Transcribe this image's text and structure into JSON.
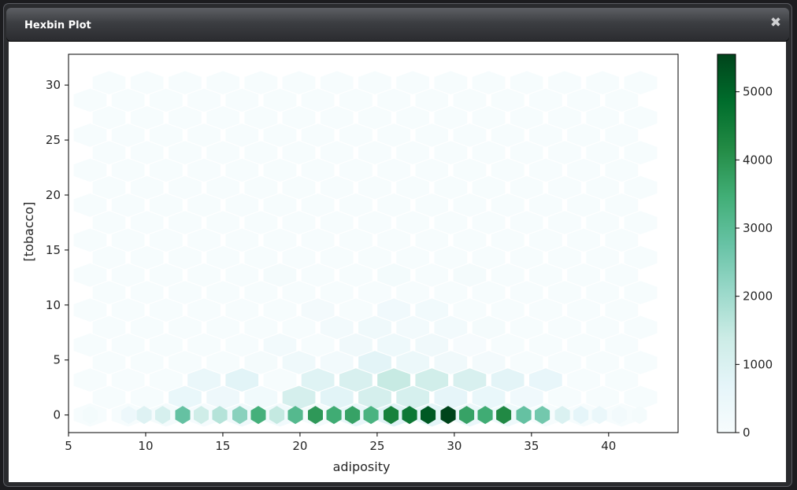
{
  "window": {
    "title": "Hexbin Plot",
    "close_icon": "close-icon",
    "close_glyph": "✖"
  },
  "chart_data": {
    "type": "heatmap",
    "subtype": "hexbin",
    "title": "",
    "xlabel": "adiposity",
    "ylabel": "[tobacco]",
    "xlim": [
      5,
      44.5
    ],
    "ylim": [
      -1.6,
      32.8
    ],
    "x_ticks": [
      5,
      10,
      15,
      20,
      25,
      30,
      35,
      40
    ],
    "y_ticks": [
      0,
      5,
      10,
      15,
      20,
      25,
      30
    ],
    "colorbar": {
      "ticks": [
        0,
        1000,
        2000,
        3000,
        4000,
        5000
      ],
      "range": [
        0,
        5550
      ],
      "colormap": [
        "#f7fcfd",
        "#e5f5f9",
        "#ccece6",
        "#99d8c9",
        "#66c2a4",
        "#41ae76",
        "#238b45",
        "#006d2c",
        "#00441b"
      ]
    },
    "gridsize": {
      "x_min": 6.4,
      "dx": 2.46,
      "y_min": 0,
      "dy": 1.59,
      "cols": 16,
      "rows": 20
    },
    "bin_counts": {
      "baseline": 40,
      "bottom_row_y0": [
        [
          6.4,
          140
        ],
        [
          8.9,
          380
        ],
        [
          9.9,
          900
        ],
        [
          11.1,
          1100
        ],
        [
          12.4,
          2800
        ],
        [
          13.6,
          1300
        ],
        [
          14.8,
          1700
        ],
        [
          16.1,
          2300
        ],
        [
          17.3,
          3400
        ],
        [
          18.5,
          1500
        ],
        [
          19.7,
          3100
        ],
        [
          21,
          3900
        ],
        [
          22.2,
          3500
        ],
        [
          23.4,
          3700
        ],
        [
          24.6,
          3300
        ],
        [
          25.9,
          4400
        ],
        [
          27.1,
          4600
        ],
        [
          28.3,
          5200
        ],
        [
          29.6,
          5550
        ],
        [
          30.8,
          3700
        ],
        [
          32,
          3500
        ],
        [
          33.2,
          4200
        ],
        [
          34.5,
          2800
        ],
        [
          35.7,
          2600
        ],
        [
          37,
          1000
        ],
        [
          38.2,
          700
        ],
        [
          39.4,
          500
        ],
        [
          40.7,
          200
        ],
        [
          42,
          100
        ]
      ],
      "hot_spots": [
        [
          25.9,
          1.1,
          2800
        ],
        [
          28.3,
          1.1,
          2500
        ],
        [
          23.4,
          1.1,
          1800
        ],
        [
          30.8,
          1.1,
          1600
        ],
        [
          19.7,
          1.1,
          1500
        ],
        [
          16.1,
          1.1,
          900
        ],
        [
          33.2,
          1.1,
          1200
        ],
        [
          12.4,
          1.1,
          700
        ],
        [
          25.9,
          2.2,
          1400
        ],
        [
          27.1,
          2.2,
          1100
        ],
        [
          29.6,
          2.2,
          900
        ],
        [
          22.2,
          2.2,
          900
        ],
        [
          25.9,
          3.3,
          1500
        ],
        [
          28.3,
          3.3,
          1300
        ],
        [
          23.4,
          3.3,
          1100
        ],
        [
          30.8,
          3.3,
          1100
        ],
        [
          21,
          3.3,
          900
        ],
        [
          16.1,
          3.3,
          800
        ],
        [
          13.6,
          3.3,
          500
        ],
        [
          33.2,
          3.3,
          800
        ],
        [
          35.7,
          3.3,
          600
        ],
        [
          25.9,
          4.4,
          1200
        ],
        [
          24.6,
          4.4,
          900
        ],
        [
          28.3,
          4.4,
          900
        ],
        [
          20.9,
          4.4,
          600
        ],
        [
          30.8,
          4.4,
          600
        ],
        [
          25.9,
          5.5,
          700
        ],
        [
          23.4,
          5.5,
          600
        ],
        [
          28.3,
          5.5,
          600
        ],
        [
          18.5,
          5.5,
          400
        ],
        [
          25.9,
          7.7,
          600
        ],
        [
          23.4,
          7.7,
          400
        ],
        [
          30.8,
          7.7,
          350
        ],
        [
          28.3,
          7.7,
          300
        ],
        [
          25.9,
          9.9,
          300
        ],
        [
          28.3,
          9.9,
          250
        ],
        [
          20.9,
          9.9,
          200
        ],
        [
          25.9,
          12.1,
          220
        ],
        [
          30.8,
          12.1,
          180
        ],
        [
          18.5,
          12.1,
          150
        ]
      ]
    }
  }
}
